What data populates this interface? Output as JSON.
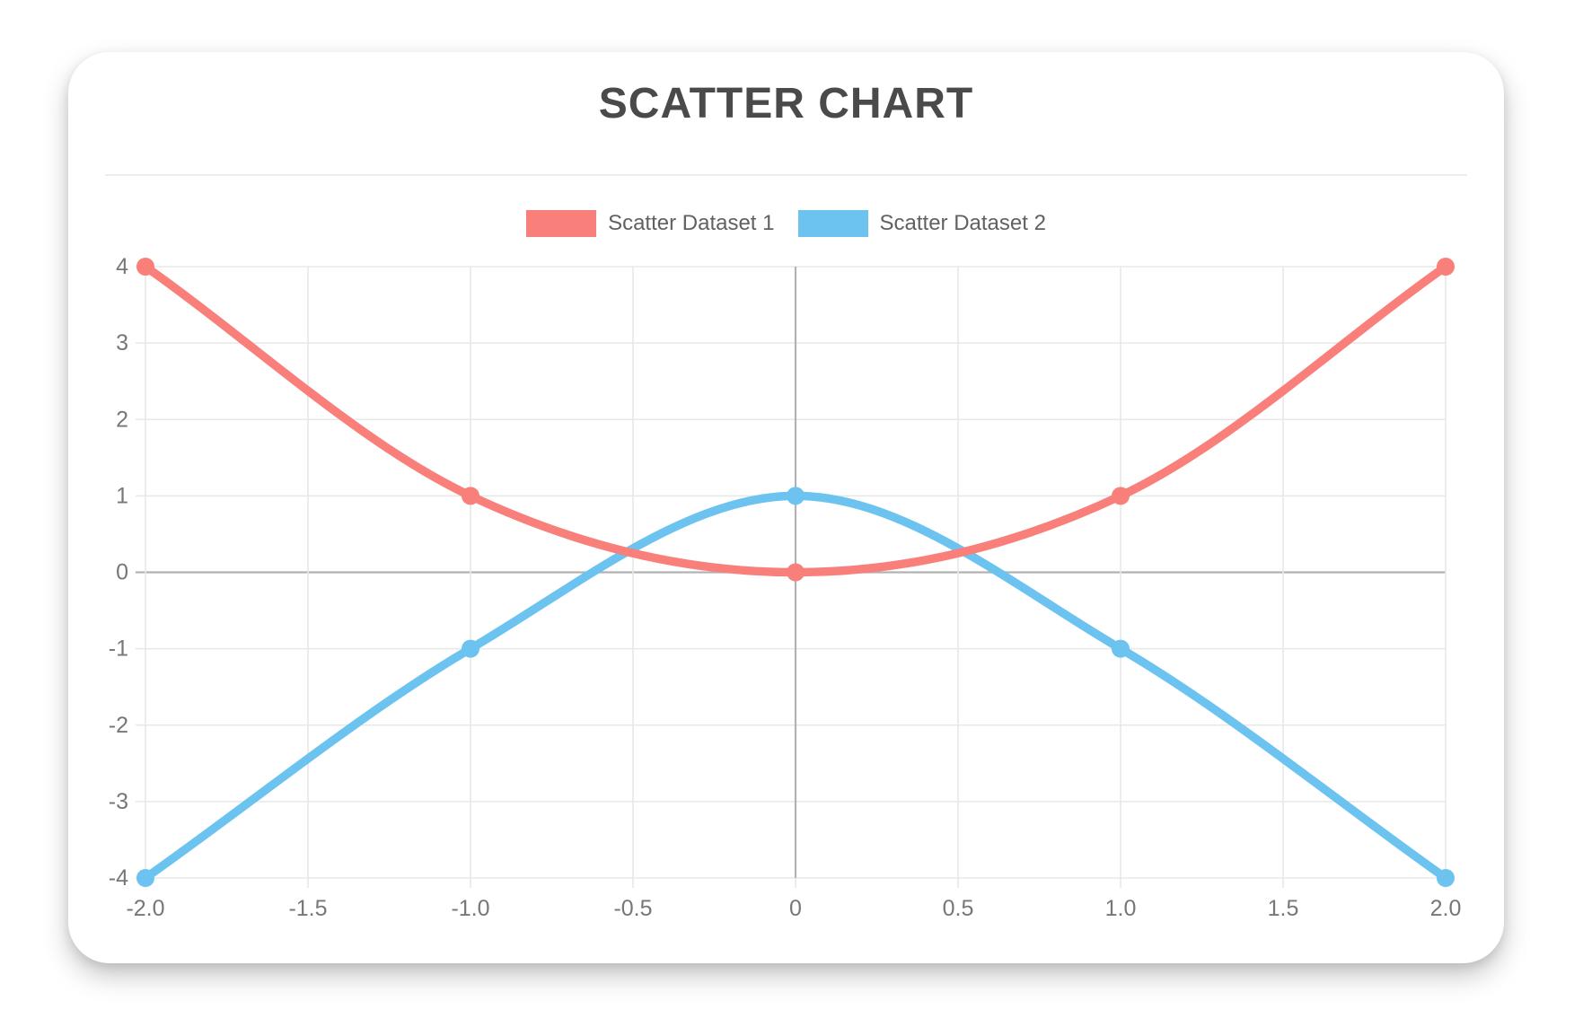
{
  "card": {
    "title": "SCATTER CHART"
  },
  "legend": {
    "items": [
      {
        "label": "Scatter Dataset 1",
        "color": "#f9807a"
      },
      {
        "label": "Scatter Dataset 2",
        "color": "#6dc3f0"
      }
    ]
  },
  "chart_data": {
    "type": "scatter",
    "title": "SCATTER CHART",
    "legend_position": "top",
    "grid": true,
    "line_interpolation": "monotone",
    "xlim": [
      -2,
      2
    ],
    "ylim": [
      -4,
      4
    ],
    "x_tick_labels": [
      "-2.0",
      "-1.5",
      "-1.0",
      "-0.5",
      "0",
      "0.5",
      "1.0",
      "1.5",
      "2.0"
    ],
    "x_tick_values": [
      -2,
      -1.5,
      -1,
      -0.5,
      0,
      0.5,
      1,
      1.5,
      2
    ],
    "y_tick_labels": [
      "4",
      "3",
      "2",
      "1",
      "0",
      "-1",
      "-2",
      "-3",
      "-4"
    ],
    "y_tick_values": [
      4,
      3,
      2,
      1,
      0,
      -1,
      -2,
      -3,
      -4
    ],
    "series": [
      {
        "name": "Scatter Dataset 1",
        "color": "#f9807a",
        "points": [
          {
            "x": -2,
            "y": 4
          },
          {
            "x": -1,
            "y": 1
          },
          {
            "x": 0,
            "y": 0
          },
          {
            "x": 1,
            "y": 1
          },
          {
            "x": 2,
            "y": 4
          }
        ]
      },
      {
        "name": "Scatter Dataset 2",
        "color": "#6dc3f0",
        "points": [
          {
            "x": -2,
            "y": -4
          },
          {
            "x": -1,
            "y": -1
          },
          {
            "x": 0,
            "y": 1
          },
          {
            "x": 1,
            "y": -1
          },
          {
            "x": 2,
            "y": -4
          }
        ]
      }
    ],
    "colors": {
      "grid": "#e8e8e8",
      "zero_line": "#b2b2b2",
      "tick_label": "#777777",
      "title": "#4a4a4a",
      "legend_label": "#616161"
    }
  }
}
